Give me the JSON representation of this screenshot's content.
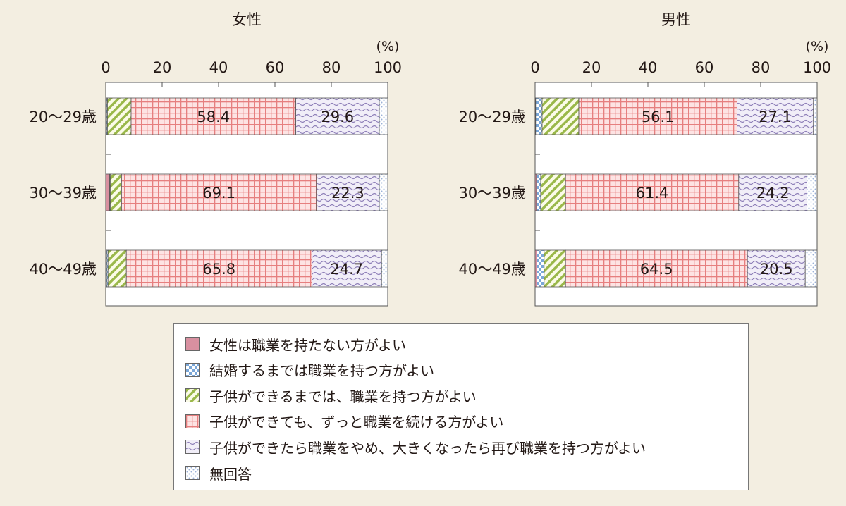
{
  "chart_data": [
    {
      "type": "bar",
      "orientation": "horizontal",
      "stacked": true,
      "title": "女性",
      "unit_label": "(%)",
      "xlim": [
        0,
        100
      ],
      "ticks": [
        "0",
        "20",
        "40",
        "60",
        "80",
        "100"
      ],
      "categories": [
        "20～29歳",
        "30～39歳",
        "40～49歳"
      ],
      "series": [
        {
          "name": "女性は職業を持たない方がよい",
          "values": [
            0.3,
            1.4,
            0.3
          ]
        },
        {
          "name": "結婚するまでは職業を持つ方がよい",
          "values": [
            0.3,
            0.2,
            0.5
          ]
        },
        {
          "name": "子供ができるまでは、職業を持つ方がよい",
          "values": [
            8.4,
            4.0,
            6.5
          ]
        },
        {
          "name": "子供ができても、ずっと職業を続ける方がよい",
          "values": [
            58.4,
            69.1,
            65.8
          ]
        },
        {
          "name": "子供ができたら職業をやめ、大きくなったら再び職業を持つ方がよい",
          "values": [
            29.6,
            22.3,
            24.7
          ]
        },
        {
          "name": "無回答",
          "values": [
            3.0,
            3.0,
            2.2
          ]
        }
      ],
      "data_labels": [
        [
          "",
          "",
          "",
          "58.4",
          "29.6",
          ""
        ],
        [
          "",
          "",
          "",
          "69.1",
          "22.3",
          ""
        ],
        [
          "",
          "",
          "",
          "65.8",
          "24.7",
          ""
        ]
      ]
    },
    {
      "type": "bar",
      "orientation": "horizontal",
      "stacked": true,
      "title": "男性",
      "unit_label": "(%)",
      "xlim": [
        0,
        100
      ],
      "ticks": [
        "0",
        "20",
        "40",
        "60",
        "80",
        "100"
      ],
      "categories": [
        "20～29歳",
        "30～39歳",
        "40～49歳"
      ],
      "series": [
        {
          "name": "女性は職業を持たない方がよい",
          "values": [
            0.2,
            0.5,
            0.6
          ]
        },
        {
          "name": "結婚するまでは職業を持つ方がよい",
          "values": [
            2.3,
            1.5,
            2.6
          ]
        },
        {
          "name": "子供ができるまでは、職業を持つ方がよい",
          "values": [
            13.0,
            8.8,
            7.6
          ]
        },
        {
          "name": "子供ができても、ずっと職業を続ける方がよい",
          "values": [
            56.1,
            61.4,
            64.5
          ]
        },
        {
          "name": "子供ができたら職業をやめ、大きくなったら再び職業を持つ方がよい",
          "values": [
            27.1,
            24.2,
            20.5
          ]
        },
        {
          "name": "無回答",
          "values": [
            1.3,
            3.6,
            4.2
          ]
        }
      ],
      "data_labels": [
        [
          "",
          "",
          "",
          "56.1",
          "27.1",
          ""
        ],
        [
          "",
          "",
          "",
          "61.4",
          "24.2",
          ""
        ],
        [
          "",
          "",
          "",
          "64.5",
          "20.5",
          ""
        ]
      ]
    }
  ],
  "legend": {
    "items": [
      {
        "label": "女性は職業を持たない方がよい",
        "pattern": "solid",
        "color": "#d890a0"
      },
      {
        "label": "結婚するまでは職業を持つ方がよい",
        "pattern": "checker",
        "color": "#7aa7d8"
      },
      {
        "label": "子供ができるまでは、職業を持つ方がよい",
        "pattern": "diagonal",
        "color": "#9ab84a"
      },
      {
        "label": "子供ができても、ずっと職業を続ける方がよい",
        "pattern": "grid",
        "color": "#e88a8a"
      },
      {
        "label": "子供ができたら職業をやめ、大きくなったら再び職業を持つ方がよい",
        "pattern": "wave",
        "color": "#8e7fb8"
      },
      {
        "label": "無回答",
        "pattern": "dots",
        "color": "#9ab0d8"
      }
    ]
  },
  "colors": {
    "background": "#f3eee1",
    "plot_background": "#ffffff",
    "axis": "#555555"
  }
}
